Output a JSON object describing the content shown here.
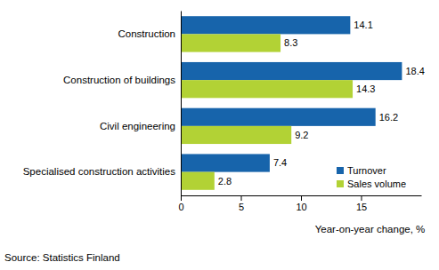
{
  "chart_data": {
    "type": "bar",
    "orientation": "horizontal",
    "categories": [
      "Construction",
      "Construction of buildings",
      "Civil engineering",
      "Specialised construction activities"
    ],
    "series": [
      {
        "name": "Turnover",
        "color": "#1764ab",
        "values": [
          14.1,
          18.4,
          16.2,
          7.4
        ]
      },
      {
        "name": "Sales volume",
        "color": "#b2d235",
        "values": [
          8.3,
          14.3,
          9.2,
          2.8
        ]
      }
    ],
    "xlabel": "Year-on-year change, %",
    "xlim": [
      0,
      20
    ],
    "xticks": [
      0,
      5,
      10,
      15
    ],
    "annotations": [
      "Source: Statistics Finland"
    ],
    "data_labels": true,
    "grid": false,
    "legend": "lower right"
  }
}
